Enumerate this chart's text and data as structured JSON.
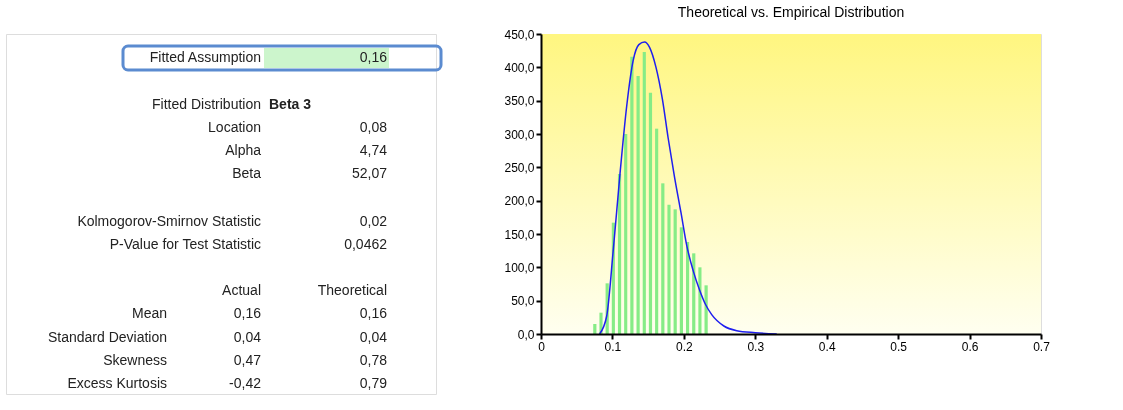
{
  "chart_data": [
    {
      "type": "other",
      "annotations": [
        "Fitted Assumption",
        "0,16",
        "Fitted Distribution",
        "Beta 3",
        "Location",
        "0,08",
        "Alpha",
        "4,74",
        "Beta",
        "52,07",
        "Kolmogorov-Smirnov Statistic",
        "0,02",
        "P-Value for Test Statistic",
        "0,0462",
        "Actual",
        "Theoretical",
        "Mean",
        "0,16",
        "0,16",
        "Standard Deviation",
        "0,04",
        "0,04",
        "Skewness",
        "0,47",
        "0,78",
        "Excess Kurtosis",
        "-0,42",
        "0,79"
      ]
    },
    {
      "type": "histogram",
      "title": "Theoretical vs. Empirical Distribution",
      "series": [
        {
          "type": "histogram",
          "color": "#86ec86",
          "bins": [
            0.071,
            0.0797,
            0.0883,
            0.097,
            0.1056,
            0.1143,
            0.1229,
            0.1316,
            0.1403,
            0.1489,
            0.1576,
            0.1662,
            0.1749,
            0.1835,
            0.1922,
            0.2009,
            0.2095,
            0.2182,
            0.2268,
            0.2355
          ],
          "values": [
            15,
            32,
            76,
            167,
            240,
            300,
            416,
            387,
            423,
            362,
            308,
            226,
            194,
            187,
            160,
            138,
            121,
            100,
            73
          ]
        },
        {
          "type": "line",
          "color": "#1f1fef",
          "x": [
            0.082,
            0.092,
            0.101,
            0.111,
            0.12,
            0.129,
            0.137,
            0.145,
            0.152,
            0.161,
            0.17,
            0.178,
            0.187,
            0.196,
            0.204,
            0.213,
            0.222,
            0.23,
            0.239,
            0.256,
            0.274,
            0.3,
            0.33
          ],
          "values": [
            0,
            27,
            124,
            245,
            342,
            410,
            434,
            438,
            430,
            400,
            352,
            294,
            235,
            182,
            133,
            95,
            66,
            45,
            29,
            12,
            5,
            2,
            0
          ]
        }
      ],
      "xlim": [
        0,
        0.7
      ],
      "xticks": [
        0,
        0.1,
        0.2,
        0.3,
        0.4,
        0.5,
        0.6,
        0.7
      ],
      "ylim": [
        0,
        450
      ],
      "yticks": [
        {
          "value": 0,
          "label": "0,0"
        },
        {
          "value": 50,
          "label": "50,0"
        },
        {
          "value": 100,
          "label": "100,0"
        },
        {
          "value": 150,
          "label": "150,0"
        },
        {
          "value": 200,
          "label": "200,0"
        },
        {
          "value": 250,
          "label": "250,0"
        },
        {
          "value": 300,
          "label": "300,0"
        },
        {
          "value": 350,
          "label": "350,0"
        },
        {
          "value": 400,
          "label": "400,0"
        },
        {
          "value": 450,
          "label": "450,0"
        }
      ],
      "grid": false
    }
  ]
}
